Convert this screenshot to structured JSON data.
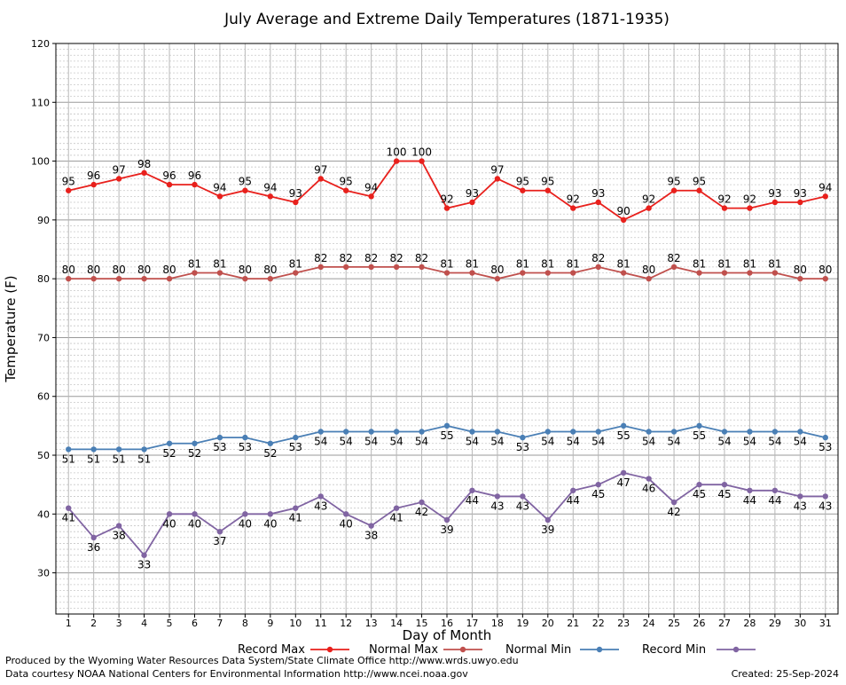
{
  "chart_data": {
    "type": "line",
    "title": "July Average and Extreme Daily Temperatures (1871-1935)",
    "xlabel": "Day of Month",
    "ylabel": "Temperature (F)",
    "ylim": [
      23,
      120
    ],
    "y_ticks": [
      30,
      40,
      50,
      60,
      70,
      80,
      90,
      100,
      110,
      120
    ],
    "grid": true,
    "legend_position": "bottom",
    "x": [
      1,
      2,
      3,
      4,
      5,
      6,
      7,
      8,
      9,
      10,
      11,
      12,
      13,
      14,
      15,
      16,
      17,
      18,
      19,
      20,
      21,
      22,
      23,
      24,
      25,
      26,
      27,
      28,
      29,
      30,
      31
    ],
    "series": [
      {
        "name": "Record Max",
        "color": "#e8201c",
        "label_position": "above",
        "values": [
          95,
          96,
          97,
          98,
          96,
          96,
          94,
          95,
          94,
          93,
          97,
          95,
          94,
          100,
          100,
          92,
          93,
          97,
          95,
          95,
          92,
          93,
          90,
          92,
          95,
          95,
          92,
          92,
          93,
          93,
          94
        ]
      },
      {
        "name": "Normal Max",
        "color": "#c0504d",
        "label_position": "above",
        "values": [
          80,
          80,
          80,
          80,
          80,
          81,
          81,
          80,
          80,
          81,
          82,
          82,
          82,
          82,
          82,
          81,
          81,
          80,
          81,
          81,
          81,
          82,
          81,
          80,
          82,
          81,
          81,
          81,
          81,
          80,
          80
        ]
      },
      {
        "name": "Normal Min",
        "color": "#4a7fb5",
        "label_position": "below",
        "values": [
          51,
          51,
          51,
          51,
          52,
          52,
          53,
          53,
          52,
          53,
          54,
          54,
          54,
          54,
          54,
          55,
          54,
          54,
          53,
          54,
          54,
          54,
          55,
          54,
          54,
          55,
          54,
          54,
          54,
          54,
          53
        ]
      },
      {
        "name": "Record Min",
        "color": "#8064a2",
        "label_position": "below",
        "values": [
          41,
          36,
          38,
          33,
          40,
          40,
          37,
          40,
          40,
          41,
          43,
          40,
          38,
          41,
          42,
          39,
          44,
          43,
          43,
          39,
          44,
          45,
          47,
          46,
          42,
          45,
          45,
          44,
          44,
          43,
          43
        ]
      }
    ]
  },
  "footer": {
    "produced_by": "Produced by the Wyoming Water Resources Data System/State Climate Office http://www.wrds.uwyo.edu",
    "courtesy": "Data courtesy NOAA National Centers for Environmental Information http://www.ncei.noaa.gov",
    "created": "Created:  25-Sep-2024"
  }
}
